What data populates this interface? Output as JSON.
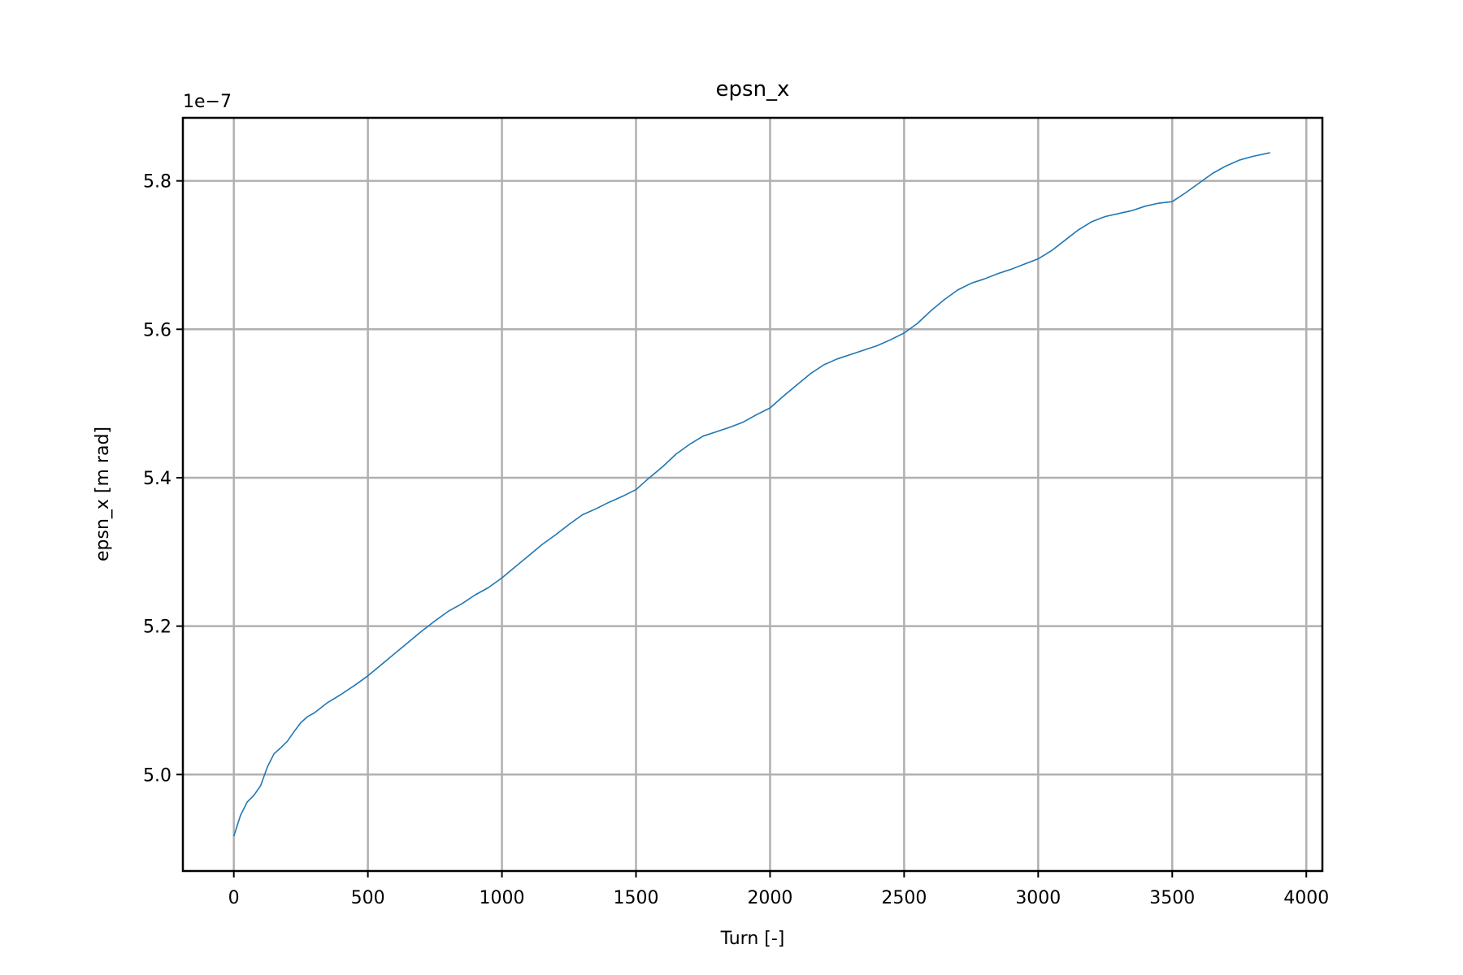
{
  "chart_data": {
    "type": "line",
    "title": "epsn_x",
    "xlabel": "Turn [-]",
    "ylabel": "epsn_x [m rad]",
    "y_offset_text": "1e−7",
    "xlim": [
      -190,
      4060
    ],
    "ylim": [
      4.87,
      5.885
    ],
    "xticks": [
      0,
      500,
      1000,
      1500,
      2000,
      2500,
      3000,
      3500,
      4000
    ],
    "xtick_labels": [
      "0",
      "500",
      "1000",
      "1500",
      "2000",
      "2500",
      "3000",
      "3500",
      "4000"
    ],
    "yticks": [
      5.0,
      5.2,
      5.4,
      5.6,
      5.8
    ],
    "ytick_labels": [
      "5.0",
      "5.2",
      "5.4",
      "5.6",
      "5.8"
    ],
    "grid": true,
    "line_color": "#1f77b4",
    "series": [
      {
        "x": [
          0,
          25,
          50,
          75,
          100,
          125,
          150,
          175,
          200,
          225,
          250,
          275,
          300,
          350,
          400,
          450,
          500,
          550,
          600,
          650,
          700,
          750,
          800,
          850,
          900,
          950,
          1000,
          1050,
          1100,
          1150,
          1200,
          1250,
          1300,
          1350,
          1400,
          1450,
          1500,
          1550,
          1600,
          1650,
          1700,
          1750,
          1800,
          1850,
          1900,
          1950,
          2000,
          2050,
          2100,
          2150,
          2200,
          2250,
          2300,
          2350,
          2400,
          2450,
          2500,
          2550,
          2600,
          2650,
          2700,
          2750,
          2800,
          2850,
          2900,
          2950,
          3000,
          3050,
          3100,
          3150,
          3200,
          3250,
          3300,
          3350,
          3400,
          3450,
          3500,
          3550,
          3600,
          3650,
          3700,
          3750,
          3800,
          3865
        ],
        "y": [
          4.917,
          4.945,
          4.963,
          4.972,
          4.985,
          5.01,
          5.028,
          5.036,
          5.045,
          5.058,
          5.07,
          5.078,
          5.083,
          5.097,
          5.108,
          5.12,
          5.133,
          5.148,
          5.163,
          5.178,
          5.193,
          5.207,
          5.22,
          5.23,
          5.242,
          5.252,
          5.265,
          5.28,
          5.295,
          5.31,
          5.323,
          5.337,
          5.35,
          5.358,
          5.367,
          5.375,
          5.384,
          5.4,
          5.415,
          5.432,
          5.445,
          5.456,
          5.462,
          5.468,
          5.475,
          5.485,
          5.494,
          5.51,
          5.525,
          5.54,
          5.552,
          5.56,
          5.566,
          5.572,
          5.578,
          5.586,
          5.595,
          5.608,
          5.625,
          5.64,
          5.653,
          5.662,
          5.668,
          5.675,
          5.681,
          5.688,
          5.695,
          5.706,
          5.72,
          5.734,
          5.745,
          5.752,
          5.756,
          5.76,
          5.766,
          5.77,
          5.772,
          5.784,
          5.797,
          5.81,
          5.82,
          5.828,
          5.833,
          5.838
        ]
      }
    ]
  }
}
